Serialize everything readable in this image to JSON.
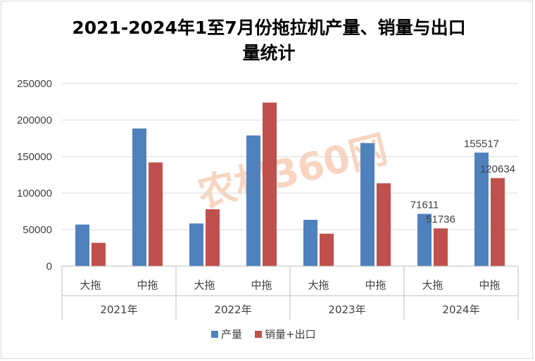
{
  "chart_data": {
    "type": "bar",
    "title": "2021-2024年1至7月份拖拉机产量、销量与出口量统计",
    "title_lines": [
      "2021-2024年1至7月份拖拉机产量、销量与出口",
      "量统计"
    ],
    "groups": [
      {
        "label": "2021年",
        "categories": [
          "大拖",
          "中拖"
        ]
      },
      {
        "label": "2022年",
        "categories": [
          "大拖",
          "中拖"
        ]
      },
      {
        "label": "2023年",
        "categories": [
          "大拖",
          "中拖"
        ]
      },
      {
        "label": "2024年",
        "categories": [
          "大拖",
          "中拖"
        ]
      }
    ],
    "categories": [
      "大拖",
      "中拖",
      "大拖",
      "中拖",
      "大拖",
      "中拖",
      "大拖",
      "中拖"
    ],
    "series": [
      {
        "name": "产量",
        "color": "#4f81bd",
        "values": [
          57000,
          188500,
          58500,
          179000,
          63500,
          168500,
          71611,
          155517
        ],
        "labels": [
          null,
          null,
          null,
          null,
          null,
          null,
          "71611",
          "155517"
        ]
      },
      {
        "name": "销量+出口",
        "color": "#c0504d",
        "values": [
          32000,
          142000,
          78000,
          224000,
          44500,
          113500,
          51736,
          120634
        ],
        "labels": [
          null,
          null,
          null,
          null,
          null,
          null,
          "51736",
          "120634"
        ]
      }
    ],
    "ylim": [
      0,
      250000
    ],
    "yticks": [
      "0",
      "50000",
      "100000",
      "150000",
      "200000",
      "250000"
    ],
    "grid": true,
    "legend": "bottom",
    "watermark": "农机360网"
  }
}
